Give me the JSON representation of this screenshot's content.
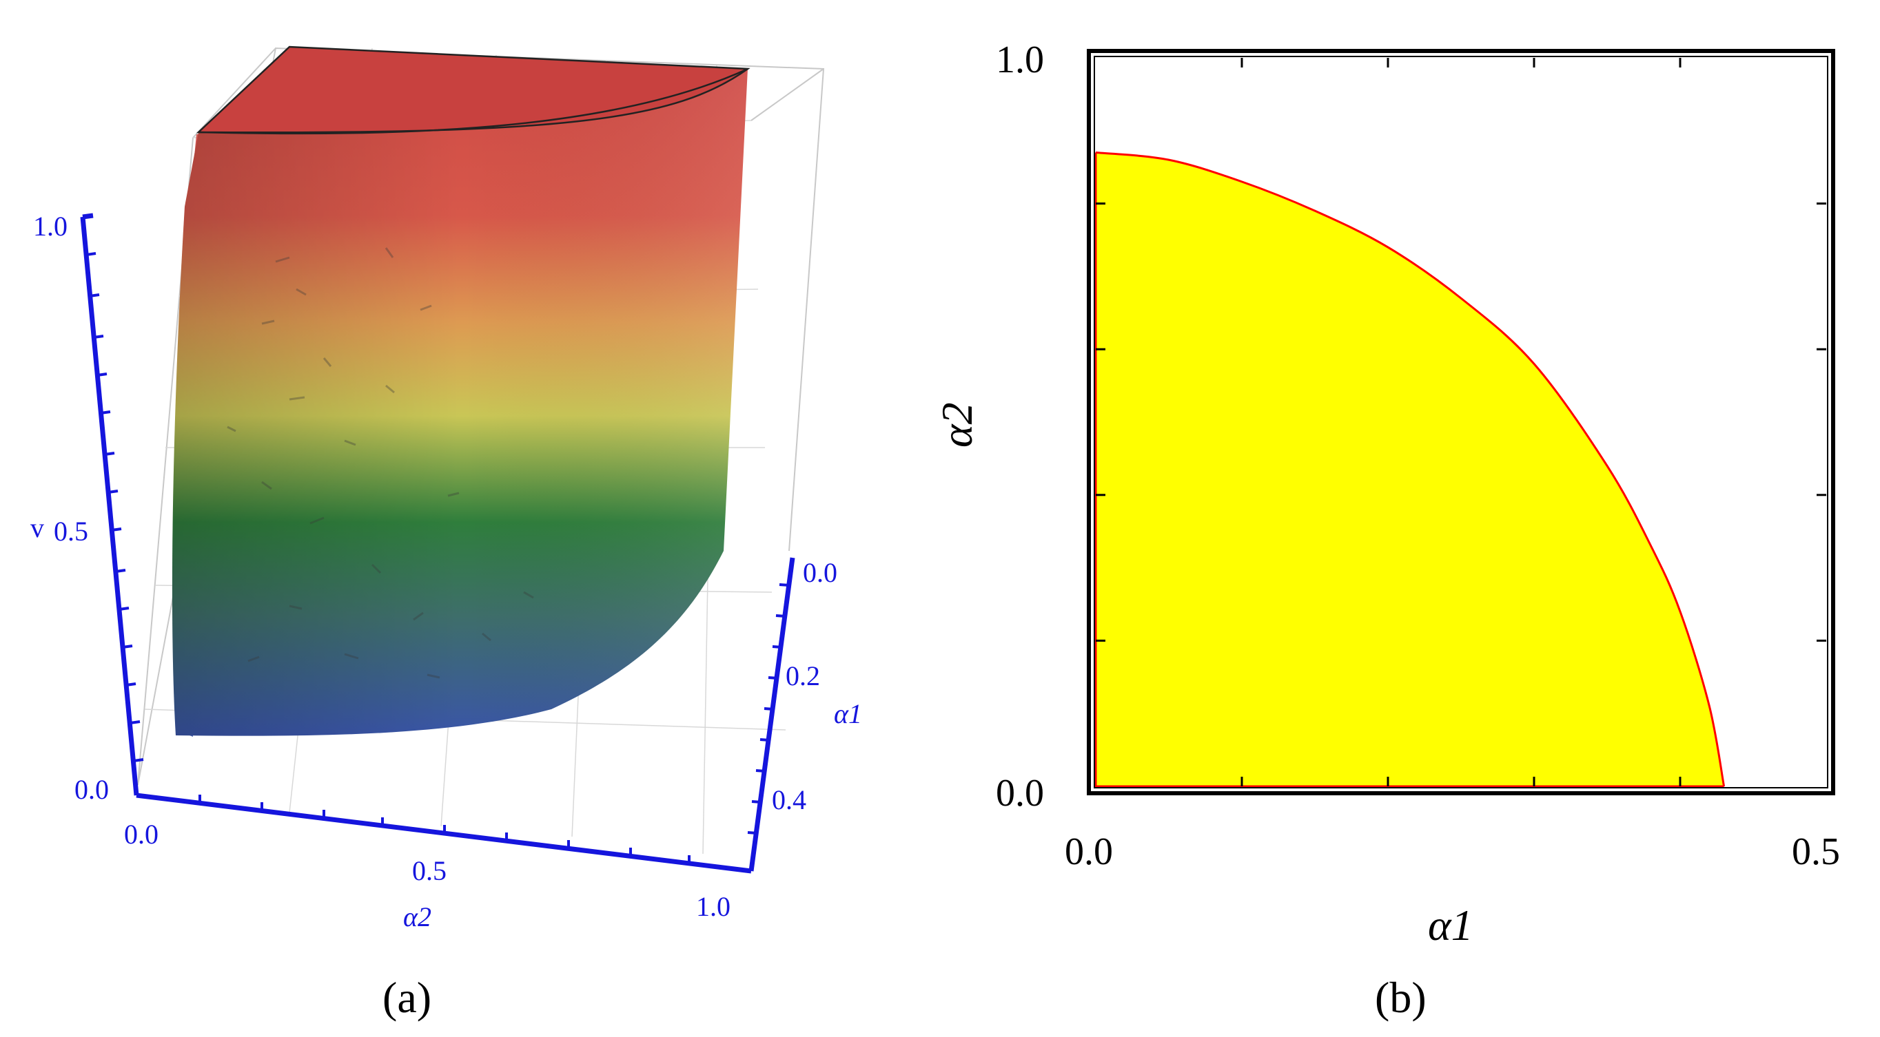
{
  "figure": {
    "panel_a_label": "(a)",
    "panel_b_label": "(b)"
  },
  "chart_data": [
    {
      "panel": "a",
      "type": "surface3d",
      "description_axes": {
        "v": {
          "label": "v",
          "range": [
            0,
            1
          ],
          "ticks": [
            "0.0",
            "0.5",
            "1.0"
          ]
        },
        "alpha1": {
          "label": "α1",
          "range": [
            0,
            0.5
          ],
          "ticks": [
            "0.0",
            "0.2",
            "0.4"
          ]
        },
        "alpha2": {
          "label": "α2",
          "range": [
            0,
            1
          ],
          "ticks": [
            "0.0",
            "0.5",
            "1.0"
          ]
        }
      },
      "boundary_alpha1_intercept": 0.43,
      "boundary_alpha2_intercept": 0.87,
      "colormap": [
        "#3a5aa8",
        "#2f7a3a",
        "#c8c552",
        "#e0a050",
        "#d2504a"
      ],
      "axis_color": "#1515dd",
      "grid": true
    },
    {
      "panel": "b",
      "type": "area",
      "xlabel": "α1",
      "ylabel": "α2",
      "xlim": [
        0,
        0.5
      ],
      "ylim": [
        0,
        1.0
      ],
      "xticks": [
        "0.0",
        "0.5"
      ],
      "yticks": [
        "0.0",
        "1.0"
      ],
      "boundary_curve": {
        "x": [
          0.0,
          0.05,
          0.1,
          0.15,
          0.2,
          0.25,
          0.3,
          0.35,
          0.38,
          0.4,
          0.42,
          0.43
        ],
        "y": [
          0.87,
          0.86,
          0.83,
          0.79,
          0.74,
          0.67,
          0.58,
          0.44,
          0.33,
          0.24,
          0.11,
          0.0
        ]
      },
      "fill_color": "#ffff00",
      "edge_color": "#ff0000",
      "grid": false
    }
  ]
}
